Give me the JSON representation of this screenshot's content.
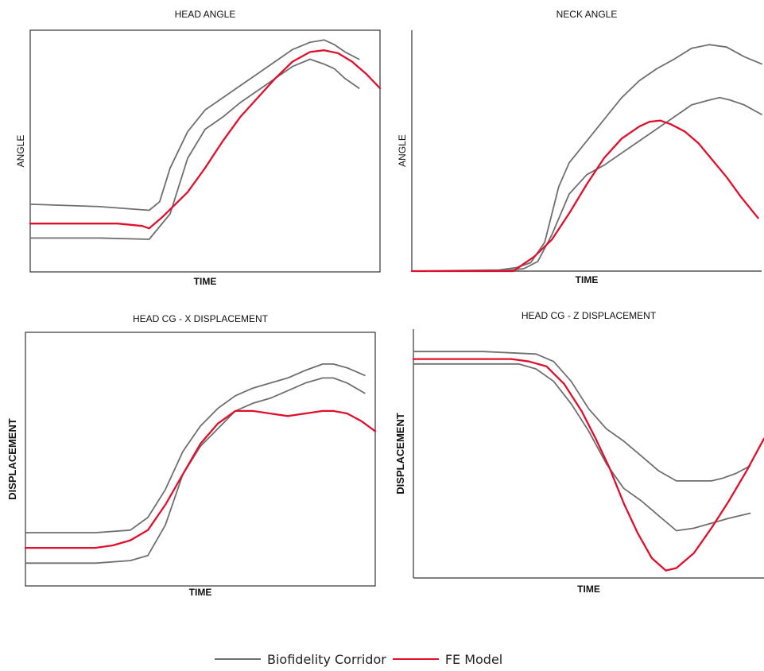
{
  "colors": {
    "corridor": "#6f6f6f",
    "model": "#e0102c",
    "frame": "#333333"
  },
  "legend": {
    "corridor_label": "Biofidelity Corridor",
    "model_label": "FE Model"
  },
  "chart_data": [
    {
      "type": "line",
      "title": "HEAD ANGLE",
      "xlabel": "TIME",
      "ylabel": "ANGLE",
      "xlim": [
        0,
        1
      ],
      "ylim": [
        0,
        1
      ],
      "grid": false,
      "legend_position": "bottom",
      "series": [
        {
          "name": "Biofidelity Corridor",
          "role": "upper",
          "x": [
            0.0,
            0.2,
            0.34,
            0.37,
            0.4,
            0.45,
            0.5,
            0.55,
            0.6,
            0.65,
            0.7,
            0.75,
            0.8,
            0.84,
            0.87,
            0.9,
            0.94
          ],
          "y": [
            0.28,
            0.27,
            0.255,
            0.29,
            0.43,
            0.58,
            0.67,
            0.72,
            0.77,
            0.82,
            0.87,
            0.92,
            0.95,
            0.96,
            0.94,
            0.91,
            0.88
          ]
        },
        {
          "name": "Biofidelity Corridor",
          "role": "lower",
          "x": [
            0.0,
            0.2,
            0.34,
            0.4,
            0.45,
            0.5,
            0.55,
            0.6,
            0.65,
            0.7,
            0.75,
            0.8,
            0.84,
            0.87,
            0.9,
            0.94
          ],
          "y": [
            0.14,
            0.14,
            0.135,
            0.24,
            0.47,
            0.59,
            0.64,
            0.7,
            0.75,
            0.8,
            0.85,
            0.88,
            0.86,
            0.84,
            0.8,
            0.76
          ]
        },
        {
          "name": "FE Model",
          "role": "model",
          "x": [
            0.0,
            0.25,
            0.32,
            0.34,
            0.38,
            0.45,
            0.5,
            0.55,
            0.6,
            0.65,
            0.7,
            0.75,
            0.8,
            0.84,
            0.88,
            0.92,
            0.96,
            1.0
          ],
          "y": [
            0.2,
            0.2,
            0.19,
            0.18,
            0.23,
            0.33,
            0.43,
            0.54,
            0.64,
            0.72,
            0.8,
            0.87,
            0.91,
            0.917,
            0.905,
            0.87,
            0.82,
            0.76
          ]
        }
      ]
    },
    {
      "type": "line",
      "title": "NECK ANGLE",
      "xlabel": "TIME",
      "ylabel": "ANGLE",
      "xlim": [
        0,
        1
      ],
      "ylim": [
        0,
        1
      ],
      "grid": false,
      "legend_position": "bottom",
      "series": [
        {
          "name": "Biofidelity Corridor",
          "role": "upper",
          "x": [
            0.0,
            0.25,
            0.3,
            0.34,
            0.38,
            0.42,
            0.45,
            0.5,
            0.55,
            0.6,
            0.65,
            0.7,
            0.75,
            0.8,
            0.85,
            0.9,
            0.95,
            1.0
          ],
          "y": [
            0.0,
            0.005,
            0.015,
            0.035,
            0.12,
            0.35,
            0.45,
            0.54,
            0.63,
            0.72,
            0.79,
            0.84,
            0.88,
            0.925,
            0.94,
            0.93,
            0.89,
            0.86
          ]
        },
        {
          "name": "Biofidelity Corridor",
          "role": "lower",
          "x": [
            0.0,
            0.25,
            0.32,
            0.36,
            0.4,
            0.45,
            0.5,
            0.55,
            0.6,
            0.65,
            0.7,
            0.75,
            0.8,
            0.85,
            0.88,
            0.91,
            0.95,
            1.0
          ],
          "y": [
            0.0,
            0.0,
            0.01,
            0.04,
            0.15,
            0.32,
            0.4,
            0.44,
            0.49,
            0.54,
            0.59,
            0.64,
            0.69,
            0.71,
            0.72,
            0.71,
            0.69,
            0.65
          ]
        },
        {
          "name": "FE Model",
          "role": "model",
          "x": [
            0.0,
            0.29,
            0.3,
            0.35,
            0.4,
            0.45,
            0.5,
            0.55,
            0.6,
            0.65,
            0.68,
            0.71,
            0.74,
            0.78,
            0.82,
            0.86,
            0.9,
            0.94,
            0.99
          ],
          "y": [
            0.0,
            0.0,
            0.01,
            0.06,
            0.13,
            0.24,
            0.36,
            0.47,
            0.55,
            0.6,
            0.62,
            0.625,
            0.61,
            0.58,
            0.53,
            0.46,
            0.39,
            0.31,
            0.22
          ]
        }
      ]
    },
    {
      "type": "line",
      "title": "HEAD CG - X DISPLACEMENT",
      "xlabel": "TIME",
      "ylabel": "DISPLACEMENT",
      "xlim": [
        0,
        1
      ],
      "ylim": [
        0,
        1
      ],
      "grid": false,
      "legend_position": "bottom",
      "series": [
        {
          "name": "Biofidelity Corridor",
          "role": "upper",
          "x": [
            0.0,
            0.2,
            0.3,
            0.35,
            0.4,
            0.45,
            0.5,
            0.55,
            0.6,
            0.65,
            0.7,
            0.75,
            0.8,
            0.85,
            0.88,
            0.92,
            0.97
          ],
          "y": [
            0.21,
            0.21,
            0.22,
            0.27,
            0.38,
            0.53,
            0.63,
            0.7,
            0.75,
            0.78,
            0.8,
            0.82,
            0.85,
            0.875,
            0.875,
            0.86,
            0.83
          ]
        },
        {
          "name": "Biofidelity Corridor",
          "role": "lower",
          "x": [
            0.0,
            0.2,
            0.3,
            0.35,
            0.4,
            0.45,
            0.5,
            0.55,
            0.6,
            0.65,
            0.7,
            0.75,
            0.8,
            0.85,
            0.88,
            0.92,
            0.97
          ],
          "y": [
            0.09,
            0.09,
            0.1,
            0.12,
            0.24,
            0.44,
            0.55,
            0.62,
            0.69,
            0.72,
            0.74,
            0.77,
            0.8,
            0.82,
            0.82,
            0.8,
            0.76
          ]
        },
        {
          "name": "FE Model",
          "role": "model",
          "x": [
            0.0,
            0.2,
            0.25,
            0.3,
            0.35,
            0.4,
            0.45,
            0.5,
            0.55,
            0.6,
            0.65,
            0.7,
            0.75,
            0.8,
            0.85,
            0.88,
            0.92,
            0.96,
            1.0
          ],
          "y": [
            0.15,
            0.15,
            0.16,
            0.18,
            0.22,
            0.32,
            0.44,
            0.56,
            0.64,
            0.69,
            0.69,
            0.68,
            0.67,
            0.68,
            0.69,
            0.69,
            0.68,
            0.65,
            0.61
          ]
        }
      ]
    },
    {
      "type": "line",
      "title": "HEAD CG - Z DISPLACEMENT",
      "xlabel": "TIME",
      "ylabel": "DISPLACEMENT",
      "xlim": [
        0,
        1
      ],
      "ylim": [
        0,
        1
      ],
      "grid": false,
      "legend_position": "bottom",
      "series": [
        {
          "name": "Biofidelity Corridor",
          "role": "upper",
          "x": [
            0.0,
            0.2,
            0.35,
            0.4,
            0.45,
            0.5,
            0.55,
            0.6,
            0.65,
            0.7,
            0.75,
            0.8,
            0.85,
            0.88,
            0.92,
            0.96
          ],
          "y": [
            0.91,
            0.91,
            0.9,
            0.87,
            0.79,
            0.68,
            0.6,
            0.55,
            0.49,
            0.43,
            0.39,
            0.39,
            0.39,
            0.4,
            0.42,
            0.45
          ]
        },
        {
          "name": "Biofidelity Corridor",
          "role": "lower",
          "x": [
            0.0,
            0.2,
            0.3,
            0.35,
            0.4,
            0.45,
            0.5,
            0.55,
            0.6,
            0.65,
            0.7,
            0.75,
            0.8,
            0.85,
            0.9,
            0.96
          ],
          "y": [
            0.86,
            0.86,
            0.86,
            0.84,
            0.79,
            0.7,
            0.59,
            0.46,
            0.36,
            0.31,
            0.25,
            0.19,
            0.2,
            0.22,
            0.24,
            0.26
          ]
        },
        {
          "name": "FE Model",
          "role": "model",
          "x": [
            0.0,
            0.28,
            0.33,
            0.38,
            0.43,
            0.48,
            0.52,
            0.56,
            0.6,
            0.64,
            0.68,
            0.72,
            0.75,
            0.8,
            0.85,
            0.9,
            0.95,
            1.0
          ],
          "y": [
            0.88,
            0.88,
            0.87,
            0.85,
            0.78,
            0.67,
            0.56,
            0.44,
            0.3,
            0.18,
            0.08,
            0.03,
            0.04,
            0.1,
            0.2,
            0.31,
            0.43,
            0.56
          ]
        }
      ]
    }
  ]
}
